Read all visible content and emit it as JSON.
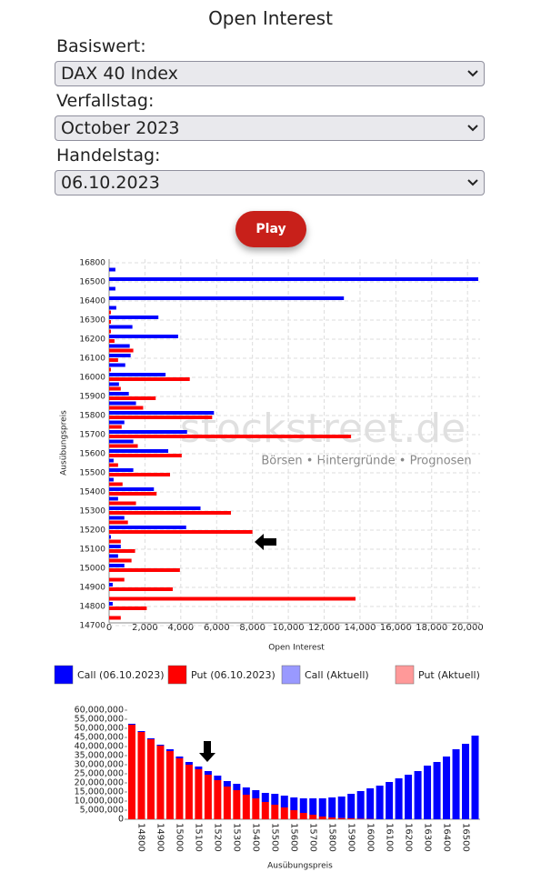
{
  "header": {
    "title": "Open Interest"
  },
  "form": {
    "fields": [
      {
        "label": "Basiswert:",
        "value": "DAX 40 Index"
      },
      {
        "label": "Verfallstag:",
        "value": "October 2023"
      },
      {
        "label": "Handelstag:",
        "value": "06.10.2023"
      }
    ],
    "button": "Play"
  },
  "chart_data": [
    {
      "type": "hbar",
      "watermark": [
        "stockstreet.de",
        "Börsen • Hintergründe • Prognosen"
      ],
      "xlabel": "Open Interest",
      "ylabel": "Ausübungspreis",
      "categories": [
        "14700",
        null,
        "14800",
        null,
        "14900",
        null,
        "15000",
        null,
        "15100",
        null,
        "15200",
        null,
        "15300",
        null,
        "15400",
        null,
        "15500",
        null,
        "15600",
        null,
        "15700",
        null,
        "15800",
        null,
        "15900",
        null,
        "16000",
        null,
        "16100",
        null,
        "16200",
        null,
        "16300",
        null,
        "16400",
        null,
        "16500",
        null,
        "16800"
      ],
      "series": [
        {
          "name": "Call (06.10.2023)",
          "color": "#0000ff",
          "values": [
            null,
            null,
            200,
            null,
            200,
            null,
            850,
            500,
            650,
            100,
            4300,
            850,
            5100,
            500,
            2500,
            250,
            1350,
            250,
            3300,
            1350,
            4350,
            850,
            5850,
            1500,
            1100,
            550,
            3150,
            900,
            1200,
            1150,
            3850,
            1300,
            2750,
            400,
            13100,
            350,
            20600,
            350,
            null
          ]
        },
        {
          "name": "Put (06.10.2023)",
          "color": "#ff0000",
          "values": [
            null,
            650,
            2100,
            13750,
            3550,
            850,
            3950,
            1250,
            1450,
            650,
            8000,
            1050,
            6800,
            1500,
            2650,
            750,
            3400,
            500,
            4050,
            1600,
            13500,
            700,
            5750,
            1900,
            2600,
            650,
            4500,
            100,
            500,
            1350,
            300,
            100,
            100,
            100,
            null,
            null,
            null,
            null,
            null
          ]
        },
        {
          "name": "Call (Aktuell)",
          "color": "#9999ff",
          "values": [
            null,
            null,
            null,
            null,
            null,
            null,
            null,
            null,
            null,
            null,
            null,
            null,
            null,
            null,
            null,
            null,
            null,
            null,
            null,
            null,
            null,
            null,
            null,
            null,
            null,
            null,
            null,
            null,
            null,
            null,
            null,
            null,
            null,
            null,
            null,
            null,
            null,
            null,
            null
          ]
        },
        {
          "name": "Put (Aktuell)",
          "color": "#ff9999",
          "values": [
            null,
            null,
            null,
            null,
            null,
            null,
            null,
            null,
            null,
            null,
            null,
            null,
            null,
            null,
            null,
            null,
            null,
            null,
            null,
            null,
            null,
            null,
            null,
            null,
            null,
            null,
            null,
            null,
            null,
            null,
            null,
            null,
            null,
            null,
            null,
            null,
            null,
            null,
            null
          ]
        }
      ],
      "xlim": [
        0,
        20700
      ],
      "xticks": [
        0,
        {
          "value": 2000,
          "label": "2,000"
        },
        {
          "value": 4000,
          "label": "4,000"
        },
        {
          "value": 6000,
          "label": "6,000"
        },
        {
          "value": 8000,
          "label": "8,000"
        },
        {
          "value": 10000,
          "label": "10,000"
        },
        {
          "value": 12000,
          "label": "12,000"
        },
        {
          "value": 14000,
          "label": "14,000"
        },
        {
          "value": 16000,
          "label": "16,000"
        },
        {
          "value": 18000,
          "label": "18,000"
        },
        {
          "value": 20000,
          "label": "20,000"
        }
      ],
      "grid": true
    },
    {
      "type": "stacked_bar",
      "xlabel": "Ausübungspreis",
      "categories": [
        null,
        "14800",
        null,
        "14900",
        null,
        "15000",
        null,
        "15100",
        null,
        "15200",
        null,
        "15300",
        null,
        "15400",
        null,
        "15500",
        null,
        "15600",
        null,
        "15700",
        null,
        "15800",
        null,
        "15900",
        null,
        "16000",
        null,
        "16100",
        null,
        "16200",
        null,
        "16300",
        null,
        "16400",
        null,
        "16500",
        null
      ],
      "series": [
        {
          "color": "#ff0000",
          "values": [
            52000000,
            48000000,
            44000000,
            40500000,
            37500000,
            33500000,
            30000000,
            27500000,
            24500000,
            21500000,
            18000000,
            16000000,
            13500000,
            11500000,
            9500000,
            8000000,
            6500000,
            5000000,
            3500000,
            2500000,
            1500000,
            1000000,
            700000,
            500000,
            300000,
            200000,
            0,
            0,
            0,
            0,
            0,
            0,
            0,
            0,
            0,
            0,
            0
          ]
        },
        {
          "color": "#0000ff",
          "values": [
            500000,
            500000,
            500000,
            500000,
            1000000,
            1000000,
            1500000,
            1500000,
            2000000,
            2500000,
            3000000,
            3500000,
            4000000,
            4500000,
            5000000,
            6000000,
            6500000,
            7000000,
            8000000,
            9000000,
            10000000,
            11000000,
            11800000,
            13500000,
            15200000,
            16800000,
            18500000,
            20500000,
            22500000,
            24500000,
            26500000,
            29500000,
            31500000,
            34500000,
            38500000,
            41500000,
            46000000
          ]
        }
      ],
      "ylim": [
        0,
        60000000
      ],
      "yticks": [
        0,
        {
          "value": 5000000,
          "label": "5,000,000"
        },
        {
          "value": 10000000,
          "label": "10,000,000"
        },
        {
          "value": 15000000,
          "label": "15,000,000"
        },
        {
          "value": 20000000,
          "label": "20,000,000"
        },
        {
          "value": 25000000,
          "label": "25,000,000"
        },
        {
          "value": 30000000,
          "label": "30,000,000"
        },
        {
          "value": 35000000,
          "label": "35,000,000"
        },
        {
          "value": 40000000,
          "label": "40,000,000"
        },
        {
          "value": 45000000,
          "label": "45,000,000"
        },
        {
          "value": 50000000,
          "label": "50,000,000"
        },
        {
          "value": 55000000,
          "label": "55,000,000"
        },
        {
          "value": 60000000,
          "label": "60,000,000"
        }
      ]
    }
  ]
}
